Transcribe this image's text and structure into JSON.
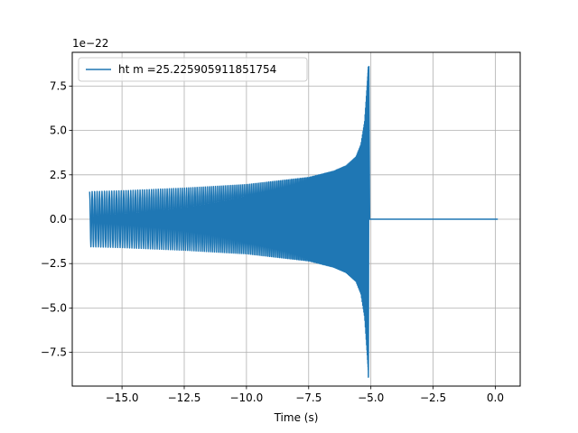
{
  "chart_data": {
    "type": "line",
    "title": "",
    "xlabel": "Time (s)",
    "ylabel": "",
    "y_offset_text": "1e−22",
    "xlim": [
      -17.0,
      1.0
    ],
    "ylim": [
      -9.4,
      9.4
    ],
    "grid": true,
    "legend_position": "upper-left",
    "xticks": [
      -15.0,
      -12.5,
      -10.0,
      -7.5,
      -5.0,
      -2.5,
      0.0
    ],
    "xtick_labels": [
      "−15.0",
      "−12.5",
      "−10.0",
      "−7.5",
      "−5.0",
      "−2.5",
      "0.0"
    ],
    "yticks": [
      -7.5,
      -5.0,
      -2.5,
      0.0,
      2.5,
      5.0,
      7.5
    ],
    "ytick_labels": [
      "−7.5",
      "−5.0",
      "−2.5",
      "0.0",
      "2.5",
      "5.0",
      "7.5"
    ],
    "series": [
      {
        "name": "ht m =25.225905911851754",
        "color": "#1f77b4",
        "start_time": -16.3,
        "merger_time": -5.1,
        "end_time": 0.1,
        "start_amplitude": 1.55,
        "peak_amplitude": 8.6,
        "envelope": [
          [
            -16.3,
            1.55
          ],
          [
            -15.0,
            1.6
          ],
          [
            -12.5,
            1.75
          ],
          [
            -10.0,
            1.95
          ],
          [
            -7.5,
            2.35
          ],
          [
            -6.5,
            2.7
          ],
          [
            -6.0,
            3.0
          ],
          [
            -5.6,
            3.5
          ],
          [
            -5.4,
            4.2
          ],
          [
            -5.25,
            5.5
          ],
          [
            -5.15,
            7.5
          ],
          [
            -5.1,
            8.6
          ],
          [
            -5.05,
            0.0
          ],
          [
            0.1,
            0.0
          ]
        ]
      }
    ]
  }
}
